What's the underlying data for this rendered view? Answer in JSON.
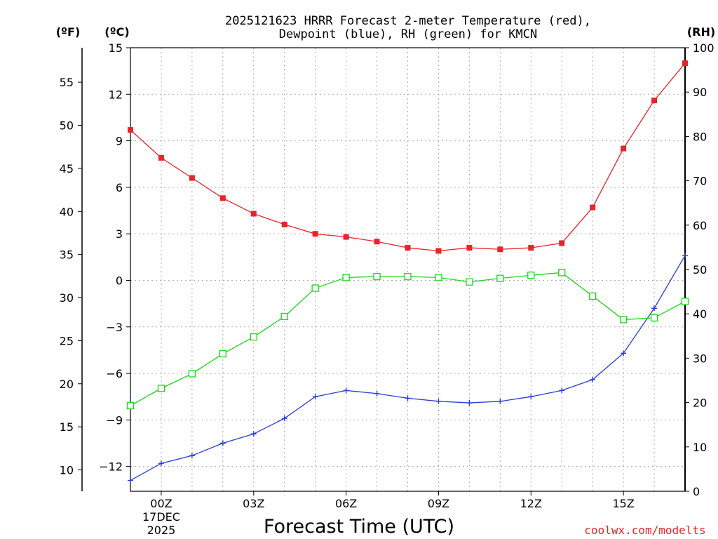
{
  "chart_data": {
    "type": "line",
    "title": "2025121623 HRRR Forecast 2-meter Temperature (red),",
    "subtitle": "Dewpoint (blue), RH (green) for KMCN",
    "xlabel": "Forecast Time (UTC)",
    "watermark": "coolwx.com/modelts",
    "unit_labels": {
      "fahrenheit": "(ºF)",
      "celsius": "(ºC)",
      "rh": "(RH)"
    },
    "x": [
      -1,
      0,
      1,
      2,
      3,
      4,
      5,
      6,
      7,
      8,
      9,
      10,
      11,
      12,
      13,
      14,
      15,
      16,
      17
    ],
    "xlim": [
      -1,
      17
    ],
    "x_ticks": [
      {
        "value": 0,
        "label": "00Z",
        "sub1": "17DEC",
        "sub2": "2025"
      },
      {
        "value": 3,
        "label": "03Z"
      },
      {
        "value": 6,
        "label": "06Z"
      },
      {
        "value": 9,
        "label": "09Z"
      },
      {
        "value": 12,
        "label": "12Z"
      },
      {
        "value": 15,
        "label": "15Z"
      }
    ],
    "celsius_axis": {
      "ylim": [
        -13.6,
        15
      ],
      "ticks": [
        15,
        12,
        9,
        6,
        3,
        0,
        -3,
        -6,
        -9,
        -12
      ],
      "tick_labels": [
        "15",
        "12",
        "9",
        "6",
        "3",
        "0",
        "−3",
        "−6",
        "−9",
        "−12"
      ]
    },
    "fahrenheit_axis": {
      "ticks": [
        55,
        50,
        45,
        40,
        35,
        30,
        25,
        20,
        15,
        10
      ],
      "tick_labels": [
        "55",
        "50",
        "45",
        "40",
        "35",
        "30",
        "25",
        "20",
        "15",
        "10"
      ]
    },
    "rh_axis": {
      "ylim": [
        0,
        100
      ],
      "ticks": [
        100,
        90,
        80,
        70,
        60,
        50,
        40,
        30,
        20,
        10,
        0
      ],
      "tick_labels": [
        "100",
        "90",
        "80",
        "70",
        "60",
        "50",
        "40",
        "30",
        "20",
        "10",
        "0"
      ]
    },
    "series": [
      {
        "name": "Temperature",
        "axis": "celsius",
        "color": "#e8232a",
        "marker": "filled-square",
        "values": [
          9.7,
          7.9,
          6.6,
          5.3,
          4.3,
          3.6,
          3.0,
          2.8,
          2.5,
          2.1,
          1.9,
          2.1,
          2.0,
          2.1,
          2.4,
          4.7,
          8.5,
          11.6,
          14.0
        ]
      },
      {
        "name": "Dewpoint",
        "axis": "celsius",
        "color": "#2b3bd8",
        "marker": "plus",
        "values": [
          -12.9,
          -11.8,
          -11.3,
          -10.5,
          -9.9,
          -8.9,
          -7.5,
          -7.1,
          -7.3,
          -7.6,
          -7.8,
          -7.9,
          -7.8,
          -7.5,
          -7.1,
          -6.4,
          -4.7,
          -1.8,
          1.6
        ]
      },
      {
        "name": "RH",
        "axis": "rh",
        "color": "#18d818",
        "marker": "open-square",
        "values": [
          19.3,
          23.2,
          26.5,
          31.0,
          34.8,
          39.4,
          45.8,
          48.2,
          48.4,
          48.4,
          48.2,
          47.2,
          48.0,
          48.7,
          49.3,
          44.0,
          38.7,
          39.1,
          42.8
        ]
      }
    ]
  }
}
